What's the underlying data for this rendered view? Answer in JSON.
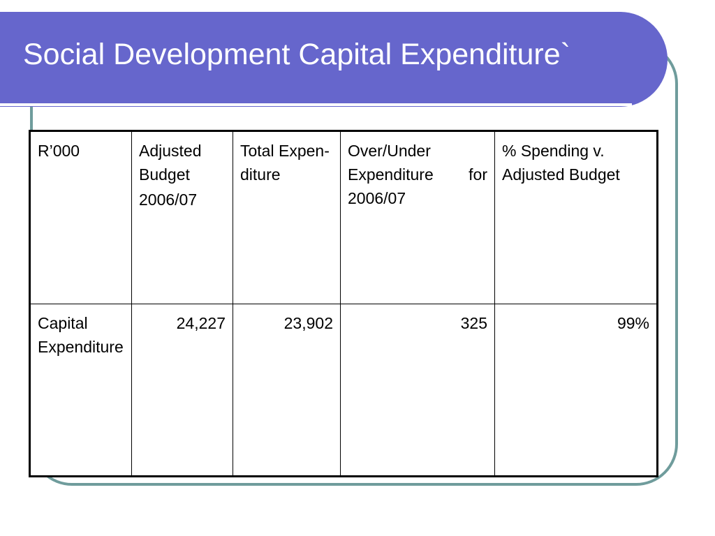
{
  "slide": {
    "title": "Social Development Capital Expenditure`"
  },
  "table": {
    "headers": [
      {
        "lines": [
          "R’000"
        ]
      },
      {
        "lines": [
          "Adjusted Budget",
          "2006/07"
        ]
      },
      {
        "lines": [
          "Total Expen-diture"
        ]
      },
      {
        "lines": [
          "Over/Under Expenditure for 2006/07"
        ]
      },
      {
        "lines": [
          "% Spending v. Adjusted Budget"
        ]
      }
    ],
    "rows": [
      {
        "label": "Capital Expenditure",
        "adjusted_budget": "24,227",
        "total_expenditure": "23,902",
        "over_under": "325",
        "percent_spending": "99%"
      }
    ]
  },
  "colors": {
    "title_bar": "#6666cc",
    "frame_border": "#6f9c9c",
    "title_text": "#ffffff"
  }
}
